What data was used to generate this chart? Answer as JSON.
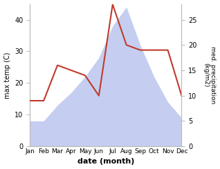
{
  "months": [
    "Jan",
    "Feb",
    "Mar",
    "Apr",
    "May",
    "Jun",
    "Jul",
    "Aug",
    "Sep",
    "Oct",
    "Nov",
    "Dec"
  ],
  "month_positions": [
    0,
    1,
    2,
    3,
    4,
    5,
    6,
    7,
    8,
    9,
    10,
    11
  ],
  "max_temp": [
    8,
    8,
    13,
    17,
    22,
    28,
    38,
    44,
    32,
    22,
    14,
    9
  ],
  "precipitation": [
    9,
    9,
    16,
    15,
    14,
    10,
    28,
    20,
    19,
    19,
    19,
    10
  ],
  "temp_color": "#c0392b",
  "precip_fill_color": "#c5cef0",
  "left_ylabel": "max temp (C)",
  "right_ylabel": "med. precipitation\n(kg/m2)",
  "xlabel": "date (month)",
  "left_ylim": [
    0,
    45
  ],
  "right_ylim": [
    0,
    28.125
  ],
  "left_yticks": [
    0,
    10,
    20,
    30,
    40
  ],
  "right_yticks": [
    0,
    5,
    10,
    15,
    20,
    25
  ],
  "figsize": [
    3.18,
    2.45
  ],
  "dpi": 100
}
